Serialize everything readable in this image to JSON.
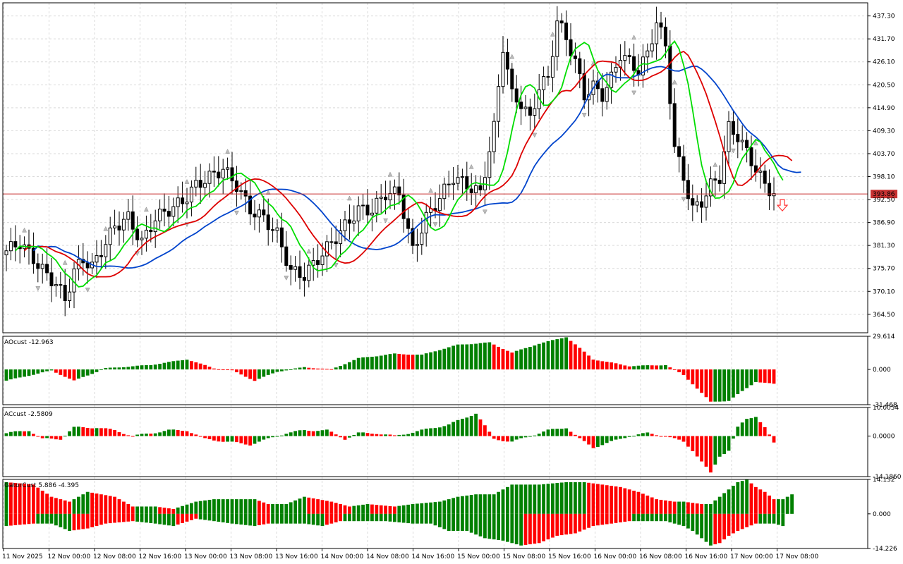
{
  "colors": {
    "bull": "#008000",
    "bear": "#ff0000",
    "candle_bear": "#000000",
    "ma_slow": "#0044cc",
    "ma_mid": "#dd0000",
    "ma_fast": "#00dd00",
    "current_price_line": "#c83232",
    "grid": "#d9d9d9"
  },
  "price_panel": {
    "ylim": [
      360.0,
      440.5
    ],
    "ticks": [
      "437.30",
      "431.70",
      "426.10",
      "420.50",
      "414.90",
      "409.30",
      "403.70",
      "398.10",
      "392.50",
      "386.90",
      "381.30",
      "375.70",
      "370.10",
      "364.50"
    ],
    "current_price": 393.86,
    "current_price_label": "393.86",
    "sell_signal_icon": "down-arrow-icon"
  },
  "ao_panel": {
    "title": "AOcust -12.963",
    "ticks": [
      "29.614",
      "0.000",
      "-31.468"
    ],
    "ylim": [
      -31.468,
      29.614
    ]
  },
  "ac_panel": {
    "title": "ACcust -2.5809",
    "ticks": [
      "10.0054",
      "0.0000",
      "-14.1860"
    ],
    "ylim": [
      -14.186,
      10.0054
    ]
  },
  "gator_panel": {
    "title": "GatorCust 5.886 -4.395",
    "ticks": [
      "14.132",
      "0.000",
      "-14.226"
    ],
    "ylim": [
      -14.226,
      14.132
    ]
  },
  "x_labels": [
    "11 Nov 2025",
    "12 Nov 00:00",
    "12 Nov 08:00",
    "12 Nov 16:00",
    "13 Nov 00:00",
    "13 Nov 08:00",
    "13 Nov 16:00",
    "14 Nov 00:00",
    "14 Nov 08:00",
    "14 Nov 16:00",
    "15 Nov 00:00",
    "15 Nov 08:00",
    "15 Nov 16:00",
    "16 Nov 00:00",
    "16 Nov 08:00",
    "16 Nov 16:00",
    "17 Nov 00:00",
    "17 Nov 08:00"
  ],
  "chart_data": {
    "type": "candlestick",
    "close_anchors": [
      [
        0,
        380
      ],
      [
        3,
        382
      ],
      [
        6,
        378
      ],
      [
        9,
        374
      ],
      [
        11,
        372
      ],
      [
        13,
        368
      ],
      [
        15,
        375
      ],
      [
        17,
        378
      ],
      [
        19,
        376
      ],
      [
        21,
        380
      ],
      [
        24,
        386
      ],
      [
        27,
        388
      ],
      [
        30,
        382
      ],
      [
        33,
        388
      ],
      [
        36,
        390
      ],
      [
        39,
        392
      ],
      [
        42,
        396
      ],
      [
        45,
        398
      ],
      [
        48,
        400
      ],
      [
        51,
        396
      ],
      [
        54,
        390
      ],
      [
        57,
        388
      ],
      [
        60,
        384
      ],
      [
        63,
        375
      ],
      [
        66,
        374
      ],
      [
        69,
        378
      ],
      [
        72,
        382
      ],
      [
        75,
        386
      ],
      [
        78,
        390
      ],
      [
        81,
        390
      ],
      [
        84,
        394
      ],
      [
        87,
        394
      ],
      [
        90,
        380
      ],
      [
        93,
        388
      ],
      [
        96,
        393
      ],
      [
        99,
        398
      ],
      [
        102,
        396
      ],
      [
        105,
        394
      ],
      [
        108,
        410
      ],
      [
        110,
        430
      ],
      [
        112,
        418
      ],
      [
        114,
        416
      ],
      [
        116,
        412
      ],
      [
        118,
        420
      ],
      [
        120,
        422
      ],
      [
        122,
        436
      ],
      [
        124,
        432
      ],
      [
        126,
        426
      ],
      [
        128,
        418
      ],
      [
        130,
        420
      ],
      [
        132,
        418
      ],
      [
        134,
        422
      ],
      [
        136,
        428
      ],
      [
        138,
        426
      ],
      [
        140,
        424
      ],
      [
        142,
        428
      ],
      [
        144,
        436
      ],
      [
        146,
        430
      ],
      [
        148,
        405
      ],
      [
        150,
        398
      ],
      [
        152,
        390
      ],
      [
        154,
        392
      ],
      [
        156,
        396
      ],
      [
        158,
        398
      ],
      [
        160,
        410
      ],
      [
        162,
        408
      ],
      [
        164,
        404
      ],
      [
        166,
        400
      ],
      [
        168,
        396
      ],
      [
        170,
        394
      ]
    ],
    "ao": [
      [
        0,
        -10
      ],
      [
        10,
        -1
      ],
      [
        15,
        -10
      ],
      [
        22,
        1
      ],
      [
        32,
        4
      ],
      [
        40,
        9
      ],
      [
        46,
        1
      ],
      [
        50,
        -1
      ],
      [
        55,
        -10
      ],
      [
        60,
        -2
      ],
      [
        66,
        2
      ],
      [
        72,
        0
      ],
      [
        78,
        10
      ],
      [
        86,
        14
      ],
      [
        92,
        13
      ],
      [
        100,
        22
      ],
      [
        107,
        24
      ],
      [
        112,
        15
      ],
      [
        118,
        23
      ],
      [
        124,
        29
      ],
      [
        130,
        9
      ],
      [
        138,
        3
      ],
      [
        146,
        4
      ],
      [
        150,
        -5
      ],
      [
        156,
        -29
      ],
      [
        160,
        -28
      ],
      [
        166,
        -11
      ],
      [
        170,
        -13
      ]
    ],
    "ac": [
      [
        0,
        1
      ],
      [
        5,
        2
      ],
      [
        8,
        -1
      ],
      [
        12,
        -1
      ],
      [
        15,
        3
      ],
      [
        20,
        3
      ],
      [
        24,
        2
      ],
      [
        28,
        0
      ],
      [
        32,
        1
      ],
      [
        36,
        2
      ],
      [
        40,
        2
      ],
      [
        44,
        -1
      ],
      [
        49,
        -2
      ],
      [
        54,
        -3
      ],
      [
        58,
        -1
      ],
      [
        62,
        1
      ],
      [
        66,
        2
      ],
      [
        71,
        2
      ],
      [
        75,
        -1
      ],
      [
        78,
        1
      ],
      [
        82,
        1
      ],
      [
        86,
        0
      ],
      [
        92,
        2
      ],
      [
        98,
        4
      ],
      [
        104,
        8
      ],
      [
        108,
        -1
      ],
      [
        112,
        -2
      ],
      [
        116,
        0
      ],
      [
        120,
        2
      ],
      [
        124,
        3
      ],
      [
        127,
        -1
      ],
      [
        130,
        -4
      ],
      [
        134,
        -2
      ],
      [
        138,
        0
      ],
      [
        142,
        1
      ],
      [
        146,
        0
      ],
      [
        150,
        -2
      ],
      [
        152,
        -5
      ],
      [
        154,
        -9
      ],
      [
        156,
        -13
      ],
      [
        158,
        -7
      ],
      [
        160,
        -5
      ],
      [
        162,
        3
      ],
      [
        164,
        6
      ],
      [
        166,
        7
      ],
      [
        168,
        3
      ],
      [
        170,
        -2.5
      ]
    ],
    "gator_up": [
      [
        0,
        13
      ],
      [
        6,
        12
      ],
      [
        10,
        7
      ],
      [
        14,
        5
      ],
      [
        18,
        9
      ],
      [
        24,
        7
      ],
      [
        28,
        3
      ],
      [
        33,
        3
      ],
      [
        37,
        2
      ],
      [
        42,
        5
      ],
      [
        46,
        6
      ],
      [
        50,
        6
      ],
      [
        55,
        6
      ],
      [
        58,
        4
      ],
      [
        62,
        4
      ],
      [
        66,
        7
      ],
      [
        72,
        5
      ],
      [
        76,
        3
      ],
      [
        80,
        4
      ],
      [
        86,
        3
      ],
      [
        90,
        4
      ],
      [
        96,
        5
      ],
      [
        100,
        7
      ],
      [
        104,
        8
      ],
      [
        108,
        8
      ],
      [
        112,
        12
      ],
      [
        118,
        12
      ],
      [
        124,
        13
      ],
      [
        128,
        13
      ],
      [
        132,
        12
      ],
      [
        136,
        11
      ],
      [
        140,
        9
      ],
      [
        144,
        6
      ],
      [
        148,
        5
      ],
      [
        150,
        5
      ],
      [
        154,
        4
      ],
      [
        156,
        4
      ],
      [
        158,
        7
      ],
      [
        162,
        13
      ],
      [
        164,
        14
      ],
      [
        166,
        11
      ],
      [
        168,
        9
      ],
      [
        170,
        6
      ],
      [
        172,
        6
      ],
      [
        174,
        8
      ]
    ],
    "gator_down": [
      [
        0,
        -5
      ],
      [
        6,
        -4
      ],
      [
        10,
        -4
      ],
      [
        14,
        -7
      ],
      [
        18,
        -6
      ],
      [
        22,
        -4
      ],
      [
        28,
        -3
      ],
      [
        33,
        -4
      ],
      [
        37,
        -5
      ],
      [
        42,
        -2
      ],
      [
        46,
        -3
      ],
      [
        50,
        -4
      ],
      [
        55,
        -5
      ],
      [
        58,
        -4
      ],
      [
        62,
        -4
      ],
      [
        66,
        -4
      ],
      [
        70,
        -5
      ],
      [
        74,
        -3
      ],
      [
        78,
        -3
      ],
      [
        84,
        -3
      ],
      [
        90,
        -4
      ],
      [
        94,
        -4
      ],
      [
        98,
        -7
      ],
      [
        102,
        -7
      ],
      [
        106,
        -10
      ],
      [
        110,
        -11
      ],
      [
        114,
        -13
      ],
      [
        118,
        -12
      ],
      [
        122,
        -9
      ],
      [
        126,
        -8
      ],
      [
        130,
        -5
      ],
      [
        134,
        -4
      ],
      [
        138,
        -3
      ],
      [
        142,
        -3
      ],
      [
        146,
        -3
      ],
      [
        150,
        -5
      ],
      [
        152,
        -7
      ],
      [
        154,
        -10
      ],
      [
        156,
        -13
      ],
      [
        158,
        -12
      ],
      [
        160,
        -9
      ],
      [
        162,
        -7
      ],
      [
        166,
        -4
      ],
      [
        170,
        -4
      ],
      [
        172,
        -5
      ]
    ]
  }
}
